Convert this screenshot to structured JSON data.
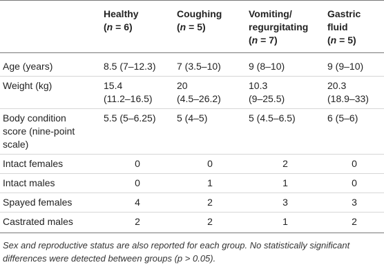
{
  "table": {
    "headers": [
      {
        "lines": [
          ""
        ],
        "n": ""
      },
      {
        "lines": [
          "Healthy"
        ],
        "n": "6"
      },
      {
        "lines": [
          "Coughing"
        ],
        "n": "5"
      },
      {
        "lines": [
          "Vomiting/",
          "regurgitating"
        ],
        "n": "7"
      },
      {
        "lines": [
          "Gastric",
          "fluid"
        ],
        "n": "5"
      }
    ],
    "n_label": "n",
    "rows": [
      {
        "label": [
          "Age (years)"
        ],
        "cells": [
          [
            "8.5 (7–12.3)"
          ],
          [
            "7 (3.5–10)"
          ],
          [
            "9 (8–10)"
          ],
          [
            "9 (9–10)"
          ]
        ]
      },
      {
        "label": [
          "Weight (kg)"
        ],
        "cells": [
          [
            "15.4",
            "(11.2–16.5)"
          ],
          [
            "20",
            "(4.5–26.2)"
          ],
          [
            "10.3",
            "(9–25.5)"
          ],
          [
            "20.3",
            "(18.9–33)"
          ]
        ]
      },
      {
        "label": [
          "Body condition",
          "score (nine-point",
          "scale)"
        ],
        "cells": [
          [
            "5.5 (5–6.25)"
          ],
          [
            "5 (4–5)"
          ],
          [
            "5 (4.5–6.5)"
          ],
          [
            "6 (5–6)"
          ]
        ]
      },
      {
        "label": [
          "Intact females"
        ],
        "cells": [
          [
            "0"
          ],
          [
            "0"
          ],
          [
            "2"
          ],
          [
            "0"
          ]
        ]
      },
      {
        "label": [
          "Intact males"
        ],
        "cells": [
          [
            "0"
          ],
          [
            "1"
          ],
          [
            "1"
          ],
          [
            "0"
          ]
        ]
      },
      {
        "label": [
          "Spayed females"
        ],
        "cells": [
          [
            "4"
          ],
          [
            "2"
          ],
          [
            "3"
          ],
          [
            "3"
          ]
        ]
      },
      {
        "label": [
          "Castrated males"
        ],
        "cells": [
          [
            "2"
          ],
          [
            "2"
          ],
          [
            "1"
          ],
          [
            "2"
          ]
        ]
      }
    ]
  },
  "footnote": "Sex and reproductive status are also reported for each group. No statistically significant differences were detected between groups (p > 0.05)."
}
